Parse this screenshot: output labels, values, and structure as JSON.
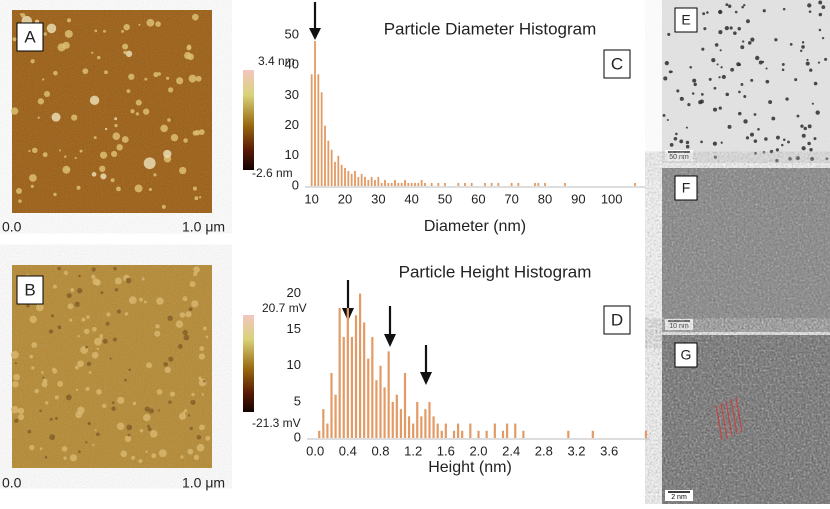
{
  "panels": {
    "A": "A",
    "B": "B",
    "E": "E",
    "F": "F",
    "G": "G"
  },
  "afm": {
    "a_max": "3.4 nm",
    "a_min": "-2.6 nm",
    "a_x0": "0.0",
    "a_x1": "1.0 μm",
    "b_max": "20.7 mV",
    "b_min": "-21.3 mV",
    "b_x0": "0.0",
    "b_x1": "1.0 μm"
  },
  "tem": {
    "e_scale": "50 nm",
    "f_scale": "10 nm",
    "g_scale": "2 nm"
  },
  "chart_data": [
    {
      "type": "bar",
      "title": "Particle Diameter Histogram",
      "panel_label": "C",
      "x_label": "Diameter (nm)",
      "color": "#e39a64",
      "x": [
        10,
        11,
        12,
        13,
        14,
        15,
        16,
        17,
        18,
        19,
        20,
        21,
        22,
        23,
        24,
        25,
        26,
        27,
        28,
        29,
        30,
        31,
        32,
        33,
        34,
        35,
        36,
        37,
        38,
        39,
        40,
        41,
        42,
        43,
        44,
        46,
        48,
        50,
        54,
        56,
        58,
        62,
        64,
        66,
        70,
        72,
        77,
        78,
        80,
        86,
        107
      ],
      "values": [
        37,
        48,
        37,
        31,
        20,
        15,
        12,
        8,
        10,
        7,
        6,
        5,
        4,
        5,
        3,
        4,
        3,
        2,
        3,
        2,
        3,
        1,
        2,
        1,
        1,
        2,
        1,
        1,
        2,
        1,
        1,
        1,
        1,
        2,
        1,
        1,
        1,
        1,
        1,
        1,
        1,
        1,
        1,
        1,
        1,
        1,
        1,
        1,
        1,
        1,
        1
      ],
      "xlim": [
        8,
        110
      ],
      "xticks": [
        10,
        20,
        30,
        40,
        50,
        60,
        70,
        80,
        90,
        100
      ],
      "ylim": [
        0,
        50
      ],
      "yticks": [
        0,
        10,
        20,
        30,
        40,
        50
      ]
    },
    {
      "type": "bar",
      "title": "Particle Height Histogram",
      "panel_label": "D",
      "x_label": "Height (nm)",
      "color": "#e39a64",
      "x": [
        0.05,
        0.1,
        0.15,
        0.2,
        0.25,
        0.3,
        0.35,
        0.4,
        0.45,
        0.5,
        0.55,
        0.6,
        0.65,
        0.7,
        0.75,
        0.8,
        0.85,
        0.9,
        0.95,
        1.0,
        1.05,
        1.1,
        1.15,
        1.2,
        1.25,
        1.3,
        1.35,
        1.4,
        1.45,
        1.5,
        1.55,
        1.6,
        1.7,
        1.75,
        1.8,
        1.9,
        2.0,
        2.1,
        2.2,
        2.3,
        2.35,
        2.45,
        2.55,
        3.1,
        3.4,
        4.05
      ],
      "values": [
        1,
        4,
        2,
        9,
        6,
        18,
        14,
        18,
        14,
        17,
        20,
        16,
        11,
        14,
        8,
        10,
        7,
        12,
        5,
        6,
        4,
        9,
        3,
        2,
        5,
        3,
        4,
        5,
        3,
        2,
        1,
        2,
        1,
        2,
        1,
        2,
        1,
        1,
        2,
        1,
        2,
        2,
        1,
        1,
        1,
        1
      ],
      "xlim": [
        -0.1,
        4.1
      ],
      "xticks": [
        {
          "value": 0,
          "label": "0.0"
        },
        0.4,
        0.8,
        1.2,
        1.6,
        {
          "value": 2,
          "label": "2.0"
        },
        2.4,
        2.8,
        3.2,
        3.6
      ],
      "ylim": [
        0,
        20.5
      ],
      "yticks": [
        0,
        5,
        10,
        15,
        20
      ]
    }
  ]
}
